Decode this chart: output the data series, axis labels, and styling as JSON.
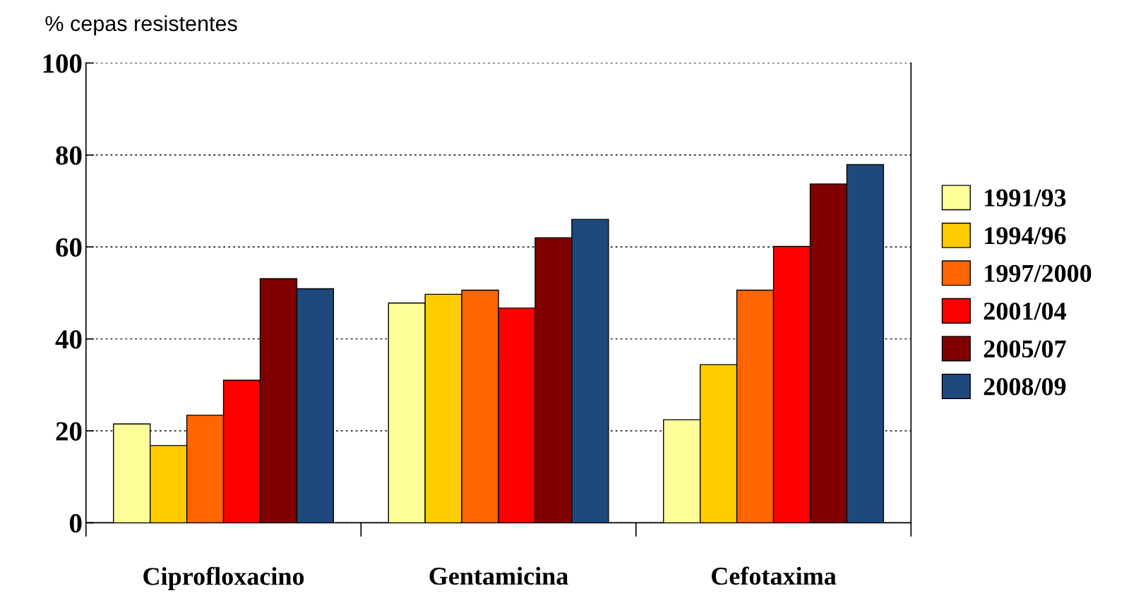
{
  "chart_data": {
    "type": "bar",
    "ylabel": "% cepas resistentes",
    "categories": [
      "Ciprofloxacino",
      "Gentamicina",
      "Cefotaxima"
    ],
    "series": [
      {
        "name": "1991/93",
        "color": "#ffff99",
        "values": [
          21.5,
          47.8,
          22.4
        ]
      },
      {
        "name": "1994/96",
        "color": "#ffcc00",
        "values": [
          16.8,
          49.7,
          34.4
        ]
      },
      {
        "name": "1997/2000",
        "color": "#ff6600",
        "values": [
          23.4,
          50.6,
          50.6
        ]
      },
      {
        "name": "2001/04",
        "color": "#ff0000",
        "values": [
          31,
          46.7,
          60.1
        ]
      },
      {
        "name": "2005/07",
        "color": "#800000",
        "values": [
          53.1,
          62,
          73.7
        ]
      },
      {
        "name": "2008/09",
        "color": "#1f497d",
        "values": [
          50.9,
          66,
          77.9
        ]
      }
    ],
    "ylim": [
      0,
      100
    ],
    "yticks": [
      0,
      20,
      40,
      60,
      80,
      100
    ],
    "grid": "y",
    "legend": "right"
  }
}
